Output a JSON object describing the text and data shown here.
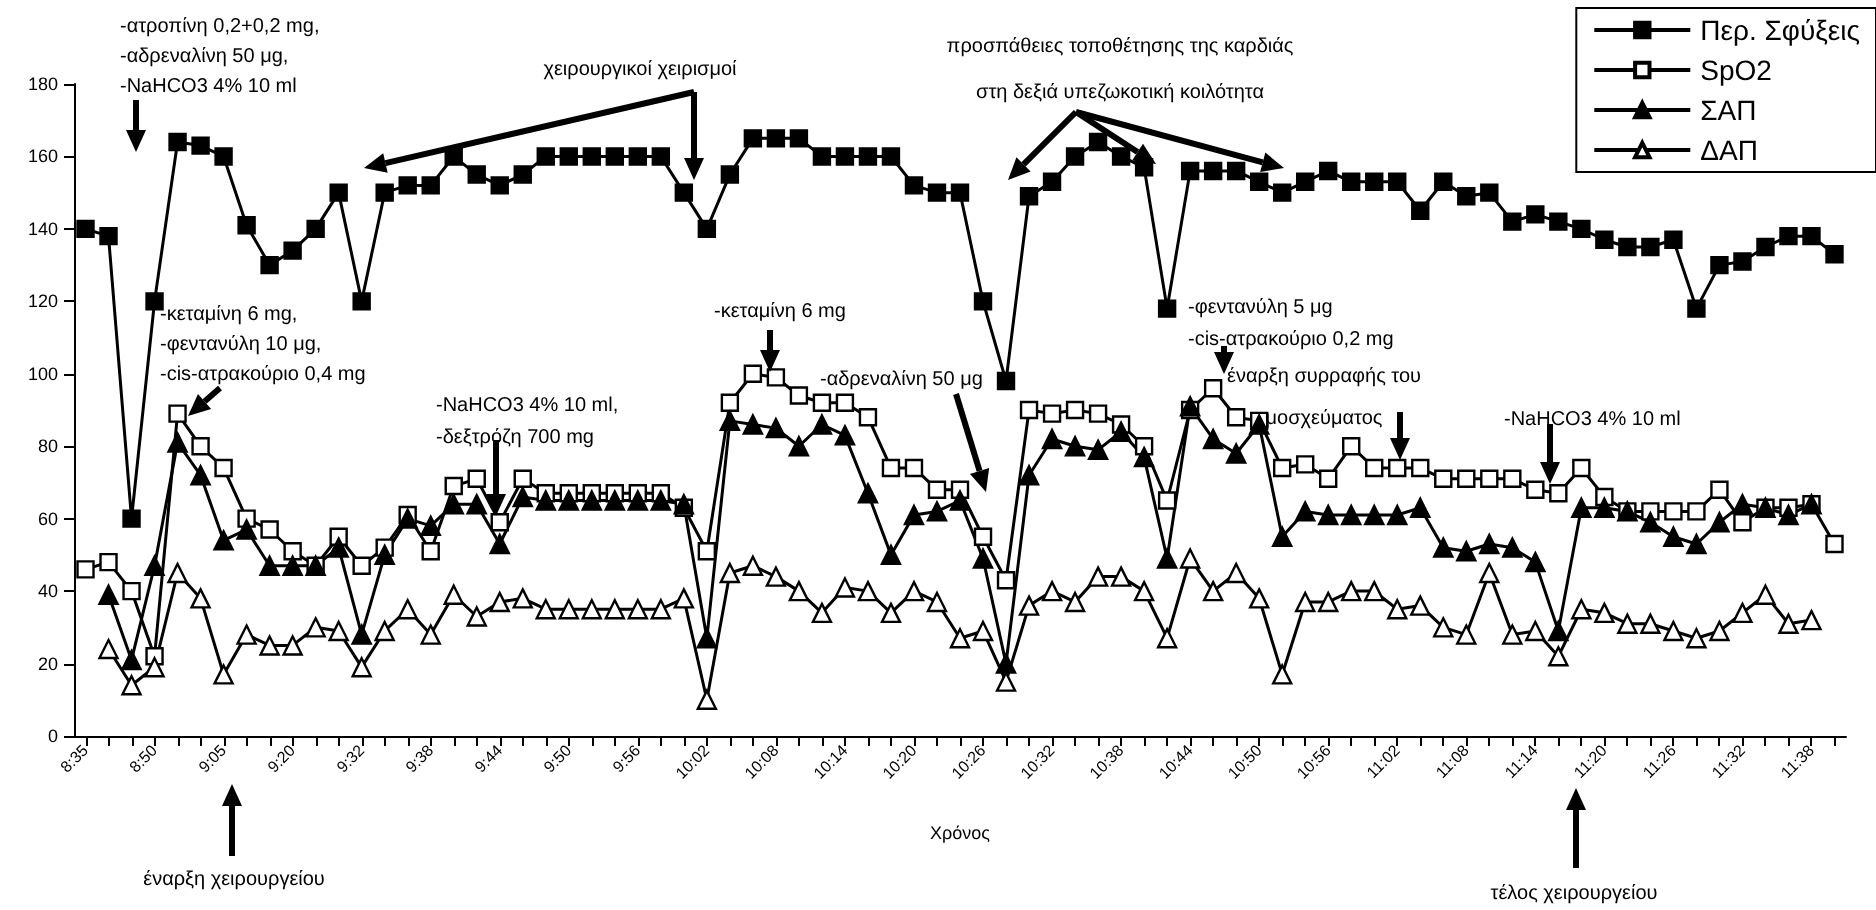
{
  "chart_data": {
    "type": "line",
    "xlabel": "Χρόνος",
    "categories": [
      "8:35",
      null,
      null,
      "8:50",
      null,
      null,
      "9:05",
      null,
      null,
      "9:20",
      null,
      null,
      "9:32",
      null,
      null,
      "9:38",
      null,
      null,
      "9:44",
      null,
      null,
      "9:50",
      null,
      null,
      "9:56",
      null,
      null,
      "10:02",
      null,
      null,
      "10:08",
      null,
      null,
      "10:14",
      null,
      null,
      "10:20",
      null,
      null,
      "10:26",
      null,
      null,
      "10:32",
      null,
      null,
      "10:38",
      null,
      null,
      "10:44",
      null,
      null,
      "10:50",
      null,
      null,
      "10:56",
      null,
      null,
      "11:02",
      null,
      null,
      "11:08",
      null,
      null,
      "11:14",
      null,
      null,
      "11:20",
      null,
      null,
      "11:26",
      null,
      null,
      "11:32",
      null,
      null,
      "11:38",
      null
    ],
    "series": [
      {
        "name": "Περ. Σφύξεις",
        "color": "#000000",
        "marker": "square",
        "values": [
          140,
          138,
          60,
          120,
          164,
          163,
          160,
          141,
          130,
          134,
          140,
          150,
          120,
          150,
          152,
          152,
          160,
          155,
          152,
          155,
          160,
          160,
          160,
          160,
          160,
          160,
          150,
          140,
          155,
          165,
          165,
          165,
          160,
          160,
          160,
          160,
          152,
          150,
          150,
          120,
          98,
          149,
          153,
          160,
          164,
          160,
          157,
          118,
          156,
          156,
          156,
          153,
          150,
          153,
          156,
          153,
          153,
          153,
          145,
          153,
          149,
          150,
          142,
          144,
          142,
          140,
          137,
          135,
          135,
          137,
          118,
          130,
          131,
          135,
          138,
          138,
          133
        ]
      },
      {
        "name": "SpO2",
        "color": "#ffffff",
        "marker": "square",
        "values": [
          46,
          48,
          40,
          22,
          89,
          80,
          74,
          60,
          57,
          51,
          47,
          55,
          47,
          52,
          61,
          51,
          69,
          71,
          59,
          71,
          67,
          67,
          67,
          67,
          67,
          67,
          63,
          51,
          92,
          100,
          99,
          94,
          92,
          92,
          88,
          74,
          74,
          68,
          68,
          55,
          43,
          90,
          89,
          90,
          89,
          86,
          80,
          65,
          90,
          96,
          88,
          87,
          74,
          75,
          71,
          80,
          74,
          74,
          74,
          71,
          71,
          71,
          71,
          68,
          67,
          74,
          66,
          62,
          62,
          62,
          62,
          68,
          59,
          63,
          63,
          64,
          53
        ]
      },
      {
        "name": "ΣΑΠ",
        "color": "#000000",
        "marker": "triangle",
        "values": [
          null,
          39,
          21,
          47,
          81,
          72,
          54,
          57,
          47,
          47,
          47,
          52,
          28,
          50,
          60,
          58,
          64,
          64,
          53,
          66,
          65,
          65,
          65,
          65,
          65,
          65,
          64,
          27,
          87,
          86,
          85,
          80,
          86,
          83,
          67,
          50,
          61,
          62,
          65,
          49,
          20,
          72,
          82,
          80,
          79,
          84,
          77,
          49,
          91,
          82,
          78,
          86,
          55,
          62,
          61,
          61,
          61,
          61,
          63,
          52,
          51,
          53,
          52,
          48,
          29,
          63,
          63,
          62,
          59,
          55,
          53,
          59,
          64,
          63,
          61,
          64,
          null
        ]
      },
      {
        "name": "ΔΑΠ",
        "color": "#ffffff",
        "marker": "triangle",
        "values": [
          null,
          24,
          14,
          19,
          45,
          38,
          17,
          28,
          25,
          25,
          30,
          29,
          19,
          29,
          35,
          28,
          39,
          33,
          37,
          38,
          35,
          35,
          35,
          35,
          35,
          35,
          38,
          10,
          45,
          47,
          44,
          40,
          34,
          41,
          40,
          34,
          40,
          37,
          27,
          29,
          15,
          36,
          40,
          37,
          44,
          44,
          40,
          27,
          49,
          40,
          45,
          38,
          17,
          37,
          37,
          40,
          40,
          35,
          36,
          30,
          28,
          45,
          28,
          29,
          22,
          35,
          34,
          31,
          31,
          29,
          27,
          29,
          34,
          39,
          31,
          32,
          null
        ]
      }
    ],
    "ylim": [
      0,
      180
    ],
    "yticks": [
      0,
      20,
      40,
      60,
      80,
      100,
      120,
      140,
      160,
      180
    ],
    "grid": false,
    "legend": "top right",
    "line_style": "solid",
    "annotations": [
      "-ατροπίνη 0,2+0,2 mg,\n-αδρεναλίνη 50 μg,\n-NaHCO3 4% 10 ml",
      "-κεταμίνη 6 mg,\n-φεντανύλη 10 μg,\n-cis-ατρακούριο 0,4 mg",
      "χειρουργικοί χειρισμοί",
      "-NaHCO3 4% 10 ml,\n-δεξτρόζη 700 mg",
      "-κεταμίνη 6 mg",
      "προσπάθειες τοποθέτησης της καρδιάς\nστη δεξιά υπεζωκοτική κοιλότητα",
      "-αδρεναλίνη 50 μg",
      "-φεντανύλη 5 μg\n-cis-ατρακούριο 0,2 mg",
      "έναρξη συρραφής του\nμοσχεύματος",
      "-NaHCO3 4% 10 ml",
      "έναρξη χειρουργείου",
      "τέλος χειρουργείου"
    ]
  }
}
